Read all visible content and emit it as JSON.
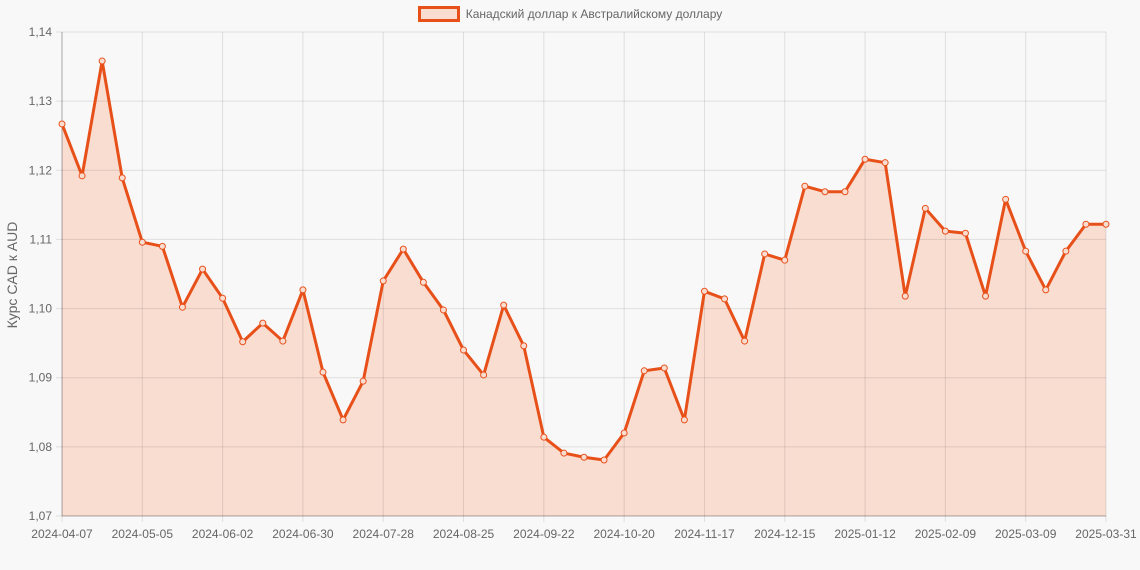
{
  "chart_data": {
    "type": "line",
    "title": "",
    "legend": [
      "Канадский доллар к Австралийскому доллару"
    ],
    "legend_position": "top",
    "xlabel": "",
    "ylabel": "Курс CAD к AUD",
    "ylim": [
      1.07,
      1.14
    ],
    "yticks": [
      "1,07",
      "1,08",
      "1,09",
      "1,10",
      "1,11",
      "1,12",
      "1,13",
      "1,14"
    ],
    "xtick_labels": [
      "2024-04-07",
      "2024-05-05",
      "2024-06-02",
      "2024-06-30",
      "2024-07-28",
      "2024-08-25",
      "2024-09-22",
      "2024-10-20",
      "2024-11-17",
      "2024-12-15",
      "2025-01-12",
      "2025-02-09",
      "2025-03-09",
      "2025-03-31"
    ],
    "grid": true,
    "fill": true,
    "colors": {
      "line": "#e8501a",
      "fill": "#f9ddd1",
      "grid": "#dddddd",
      "background": "#f8f8f8"
    },
    "series": [
      {
        "name": "Канадский доллар к Австралийскому доллару",
        "values": [
          1.1267,
          1.1192,
          1.1358,
          1.1189,
          1.1096,
          1.109,
          1.1002,
          1.1057,
          1.1015,
          1.0952,
          1.0979,
          1.0953,
          1.1027,
          1.0908,
          1.0839,
          1.0895,
          1.104,
          1.1086,
          1.1038,
          1.0998,
          1.094,
          1.0904,
          1.1005,
          1.0946,
          1.0814,
          1.0791,
          1.0785,
          1.0781,
          1.082,
          1.091,
          1.0914,
          1.0839,
          1.1025,
          1.1014,
          1.0953,
          1.1079,
          1.107,
          1.1177,
          1.1169,
          1.1169,
          1.1216,
          1.1211,
          1.1018,
          1.1145,
          1.1112,
          1.1109,
          1.1018,
          1.1158,
          1.1083,
          1.1027,
          1.1083,
          1.1122,
          1.1122
        ]
      }
    ]
  }
}
